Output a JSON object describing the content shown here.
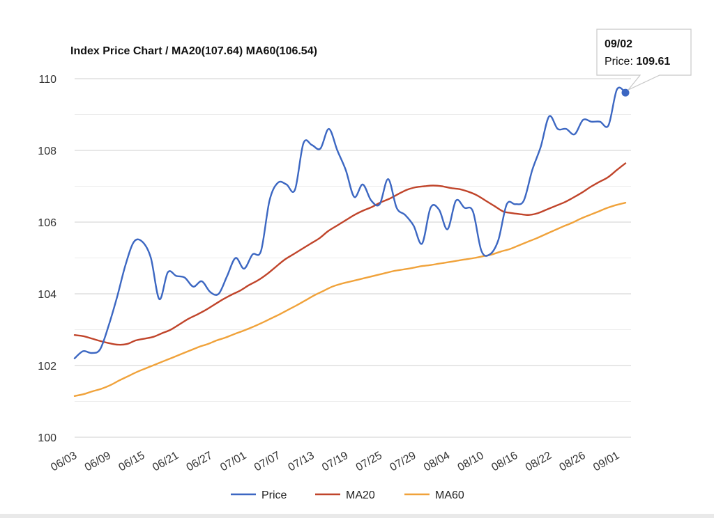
{
  "chart_data": {
    "type": "line",
    "title": "Index Price Chart / MA20(107.64) MA60(106.54)",
    "xlabel": "",
    "ylabel": "",
    "ylim": [
      100,
      110
    ],
    "y_ticks": [
      "100",
      "102",
      "104",
      "106",
      "108",
      "110"
    ],
    "x_tick_labels": [
      "06/03",
      "06/09",
      "06/15",
      "06/21",
      "06/27",
      "07/01",
      "07/07",
      "07/13",
      "07/19",
      "07/25",
      "07/29",
      "08/04",
      "08/10",
      "08/16",
      "08/22",
      "08/26",
      "09/01"
    ],
    "grid": true,
    "legend_position": "bottom",
    "series": [
      {
        "name": "Price",
        "color": "#3c67c2",
        "values": [
          102.2,
          102.4,
          102.35,
          102.45,
          103.1,
          103.9,
          104.8,
          105.45,
          105.45,
          105.0,
          103.85,
          104.6,
          104.5,
          104.45,
          104.2,
          104.35,
          104.05,
          104.0,
          104.5,
          105.0,
          104.7,
          105.1,
          105.2,
          106.6,
          107.1,
          107.05,
          106.9,
          108.2,
          108.15,
          108.05,
          108.6,
          108.0,
          107.45,
          106.7,
          107.05,
          106.6,
          106.5,
          107.2,
          106.4,
          106.2,
          105.9,
          105.4,
          106.4,
          106.35,
          105.8,
          106.6,
          106.4,
          106.3,
          105.2,
          105.1,
          105.5,
          106.5,
          106.5,
          106.6,
          107.45,
          108.1,
          108.95,
          108.6,
          108.6,
          108.45,
          108.85,
          108.8,
          108.8,
          108.7,
          109.7,
          109.61
        ]
      },
      {
        "name": "MA20",
        "color": "#c0442a",
        "values": [
          102.85,
          102.82,
          102.75,
          102.68,
          102.62,
          102.58,
          102.6,
          102.7,
          102.75,
          102.8,
          102.9,
          103.0,
          103.15,
          103.3,
          103.42,
          103.55,
          103.7,
          103.85,
          103.98,
          104.1,
          104.25,
          104.38,
          104.55,
          104.75,
          104.95,
          105.1,
          105.25,
          105.4,
          105.55,
          105.75,
          105.9,
          106.05,
          106.2,
          106.32,
          106.42,
          106.55,
          106.65,
          106.78,
          106.9,
          106.97,
          107.0,
          107.02,
          107.0,
          106.95,
          106.92,
          106.85,
          106.75,
          106.6,
          106.45,
          106.3,
          106.25,
          106.22,
          106.2,
          106.25,
          106.35,
          106.45,
          106.55,
          106.68,
          106.82,
          106.98,
          107.12,
          107.25,
          107.45,
          107.64
        ]
      },
      {
        "name": "MA60",
        "color": "#f0a23a",
        "values": [
          101.15,
          101.2,
          101.28,
          101.35,
          101.45,
          101.58,
          101.7,
          101.82,
          101.92,
          102.02,
          102.12,
          102.22,
          102.32,
          102.42,
          102.52,
          102.6,
          102.7,
          102.78,
          102.88,
          102.97,
          103.07,
          103.18,
          103.3,
          103.42,
          103.55,
          103.68,
          103.82,
          103.96,
          104.08,
          104.2,
          104.28,
          104.34,
          104.4,
          104.46,
          104.52,
          104.58,
          104.64,
          104.68,
          104.72,
          104.77,
          104.8,
          104.84,
          104.88,
          104.92,
          104.96,
          105.0,
          105.05,
          105.1,
          105.18,
          105.25,
          105.35,
          105.45,
          105.55,
          105.66,
          105.77,
          105.88,
          105.98,
          106.1,
          106.2,
          106.3,
          106.4,
          106.48,
          106.54
        ]
      }
    ],
    "tooltip": {
      "date": "09/02",
      "label": "Price: ",
      "value": "109.61"
    }
  }
}
